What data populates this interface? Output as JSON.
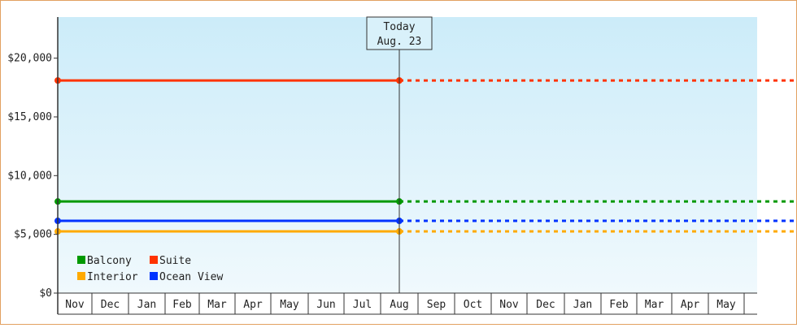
{
  "chart_data": {
    "type": "line",
    "title": "",
    "xlabel": "",
    "ylabel": "",
    "ylim": [
      0,
      23500
    ],
    "y_ticks": [
      0,
      5000,
      10000,
      15000,
      20000
    ],
    "y_tick_labels": [
      "$0",
      "$5,000",
      "$10,000",
      "$15,000",
      "$20,000"
    ],
    "months": [
      "Nov",
      "Dec",
      "Jan",
      "Feb",
      "Mar",
      "Apr",
      "May",
      "Jun",
      "Jul",
      "Aug",
      "Sep",
      "Oct",
      "Nov",
      "Dec",
      "Jan",
      "Feb",
      "Mar",
      "Apr",
      "May"
    ],
    "today": {
      "label_line1": "Today",
      "label_line2": "Aug. 23"
    },
    "series": [
      {
        "name": "Suite",
        "color": "#ff3300",
        "value": 18100
      },
      {
        "name": "Balcony",
        "color": "#009900",
        "value": 7800
      },
      {
        "name": "Ocean View",
        "color": "#0033ff",
        "value": 6150
      },
      {
        "name": "Interior",
        "color": "#ffaa00",
        "value": 5250
      }
    ],
    "legend": {
      "placement": "bottom-left",
      "rows": [
        [
          "Balcony",
          "Suite"
        ],
        [
          "Interior",
          "Ocean View"
        ]
      ]
    },
    "background_gradient": [
      "#ccecf9",
      "#f0f9fd"
    ],
    "grid": false
  }
}
